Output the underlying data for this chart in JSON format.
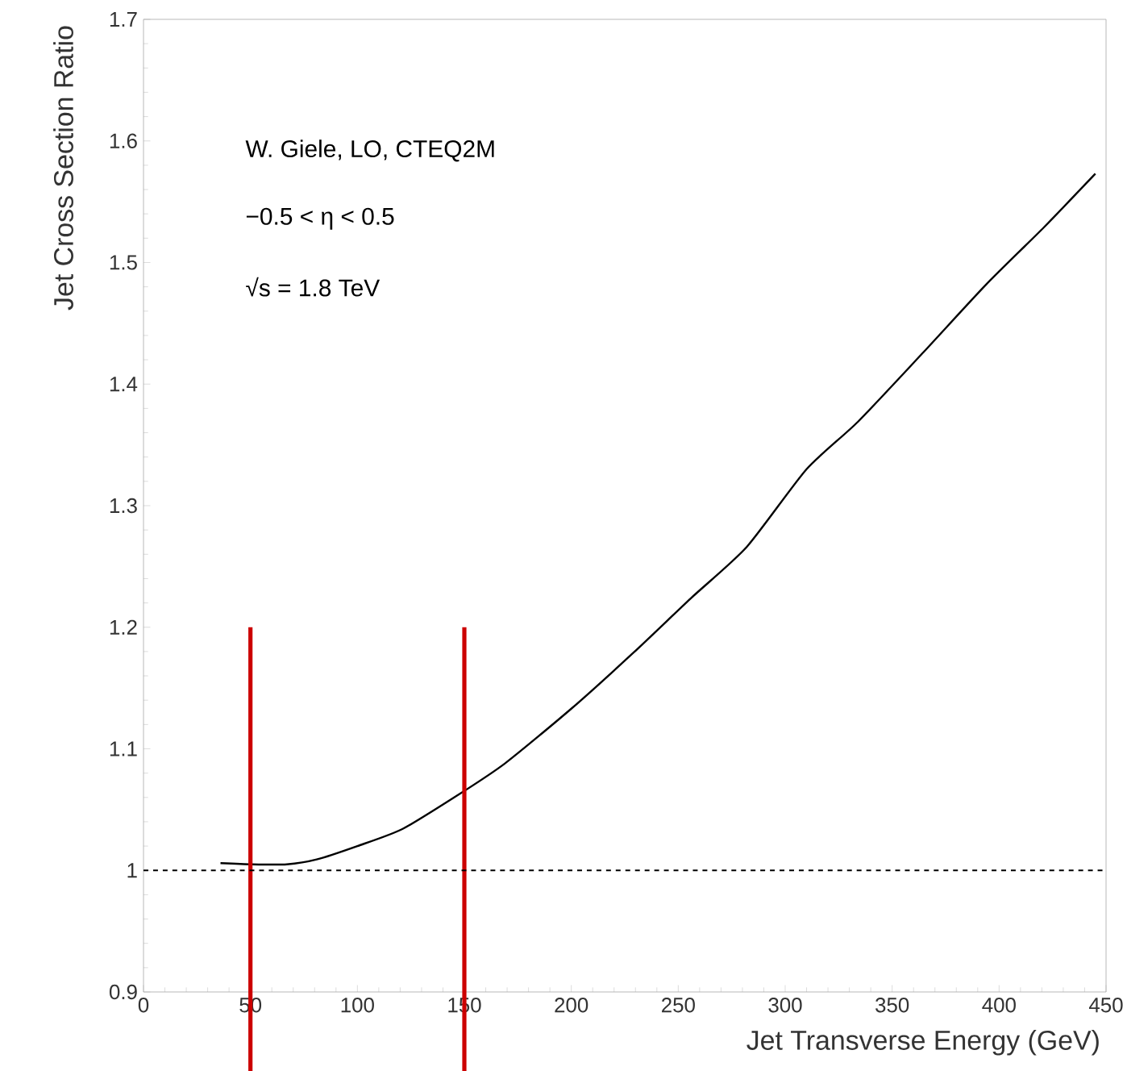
{
  "chart_data": {
    "type": "line",
    "xlabel": "Jet Transverse Energy (GeV)",
    "ylabel": "Jet Cross Section Ratio",
    "annotations": [
      "W. Giele, LO, CTEQ2M",
      "−0.5 < η < 0.5",
      "√s = 1.8 TeV"
    ],
    "x": [
      36,
      50.6,
      67,
      81,
      100,
      121,
      147,
      169,
      200,
      229,
      256,
      282,
      310,
      334,
      364,
      394,
      421,
      445
    ],
    "series": [
      {
        "color": "#000000",
        "values": [
          1.006,
          1.005,
          1.005,
          1.009,
          1.02,
          1.034,
          1.062,
          1.088,
          1.133,
          1.179,
          1.224,
          1.266,
          1.33,
          1.369,
          1.425,
          1.482,
          1.529,
          1.573
        ]
      }
    ],
    "xlim": [
      0,
      450
    ],
    "ylim": [
      0.9,
      1.7
    ],
    "xticks": [
      0,
      50,
      100,
      150,
      200,
      250,
      300,
      350,
      400,
      450
    ],
    "yticks": [
      0.9,
      1,
      1.1,
      1.2,
      1.3,
      1.4,
      1.5,
      1.6,
      1.7
    ],
    "ref_lines": [
      {
        "axis": "x",
        "value": 50,
        "color": "#cc0000"
      },
      {
        "axis": "x",
        "value": 150,
        "color": "#cc0000"
      },
      {
        "axis": "y",
        "value": 1,
        "color": "#000000",
        "line_style": "dashed"
      }
    ],
    "grid": false,
    "marker": "none",
    "line_style": "solid"
  }
}
